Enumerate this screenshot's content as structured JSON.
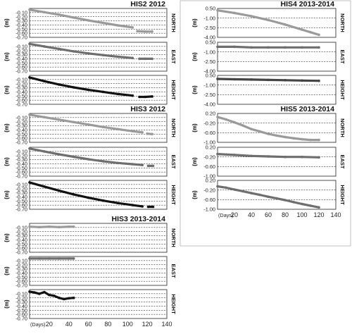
{
  "chart_data": [
    {
      "type": "scatter",
      "title": "HIS2 2012",
      "x_range": [
        0,
        140
      ],
      "panels": [
        {
          "component": "NORTH",
          "ylabel": "(m)",
          "ylim": [
            -0.7,
            0
          ],
          "yticks": [
            "-0.10",
            "-0.20",
            "-0.30",
            "-0.40",
            "-0.50",
            "-0.60",
            "-0.70"
          ],
          "color": "#9a9a9a",
          "series": [
            {
              "x": [
                0,
                15,
                30,
                45,
                60,
                75,
                90,
                105
              ],
              "y": [
                -0.03,
                -0.09,
                -0.15,
                -0.22,
                -0.29,
                -0.35,
                -0.41,
                -0.46
              ]
            },
            {
              "x": [
                110,
                118,
                125
              ],
              "y": [
                -0.55,
                -0.56,
                -0.56
              ]
            }
          ]
        },
        {
          "component": "EAST",
          "ylabel": "(m)",
          "ylim": [
            -0.7,
            0
          ],
          "yticks": [
            "-0.10",
            "-0.20",
            "-0.30",
            "-0.40",
            "-0.50",
            "-0.60",
            "-0.70"
          ],
          "color": "#6e6e6e",
          "series": [
            {
              "x": [
                0,
                15,
                30,
                45,
                60,
                75,
                90,
                105
              ],
              "y": [
                -0.04,
                -0.1,
                -0.16,
                -0.22,
                -0.27,
                -0.31,
                -0.35,
                -0.38
              ]
            },
            {
              "x": [
                112,
                118,
                125
              ],
              "y": [
                -0.4,
                -0.4,
                -0.4
              ]
            }
          ]
        },
        {
          "component": "HEIGHT",
          "ylabel": "(m)",
          "ylim": [
            -0.7,
            0
          ],
          "yticks": [
            "-0.10",
            "-0.20",
            "-0.30",
            "-0.40",
            "-0.50",
            "-0.60",
            "-0.70"
          ],
          "color": "#111111",
          "series": [
            {
              "x": [
                0,
                15,
                30,
                45,
                60,
                75,
                90,
                105
              ],
              "y": [
                -0.05,
                -0.14,
                -0.22,
                -0.29,
                -0.35,
                -0.4,
                -0.45,
                -0.49
              ]
            },
            {
              "x": [
                112,
                118,
                125
              ],
              "y": [
                -0.52,
                -0.52,
                -0.51
              ]
            }
          ]
        }
      ]
    },
    {
      "type": "scatter",
      "title": "HIS3 2012",
      "x_range": [
        0,
        140
      ],
      "panels": [
        {
          "component": "NORTH",
          "ylabel": "(m)",
          "ylim": [
            -0.7,
            0
          ],
          "yticks": [
            "-0.10",
            "-0.20",
            "-0.30",
            "-0.40",
            "-0.50",
            "-0.60",
            "-0.70"
          ],
          "color": "#9a9a9a",
          "series": [
            {
              "x": [
                0,
                15,
                30,
                45,
                60,
                75,
                90,
                105,
                115
              ],
              "y": [
                -0.03,
                -0.09,
                -0.15,
                -0.21,
                -0.27,
                -0.33,
                -0.38,
                -0.43,
                -0.46
              ]
            },
            {
              "x": [
                120,
                125
              ],
              "y": [
                -0.49,
                -0.5
              ]
            }
          ]
        },
        {
          "component": "EAST",
          "ylabel": "(m)",
          "ylim": [
            -0.7,
            0
          ],
          "yticks": [
            "-0.10",
            "-0.20",
            "-0.30",
            "-0.40",
            "-0.50",
            "-0.60",
            "-0.70"
          ],
          "color": "#6e6e6e",
          "series": [
            {
              "x": [
                0,
                15,
                30,
                45,
                60,
                75,
                90,
                105,
                115
              ],
              "y": [
                -0.03,
                -0.1,
                -0.17,
                -0.23,
                -0.29,
                -0.34,
                -0.38,
                -0.41,
                -0.43
              ]
            },
            {
              "x": [
                121,
                126
              ],
              "y": [
                -0.45,
                -0.45
              ]
            }
          ]
        },
        {
          "component": "HEIGHT",
          "ylabel": "(m)",
          "ylim": [
            -0.7,
            0
          ],
          "yticks": [
            "-0.10",
            "-0.20",
            "-0.30",
            "-0.40",
            "-0.50",
            "-0.60",
            "-0.70"
          ],
          "color": "#111111",
          "series": [
            {
              "x": [
                0,
                15,
                30,
                45,
                60,
                75,
                90,
                105,
                115
              ],
              "y": [
                -0.05,
                -0.15,
                -0.25,
                -0.34,
                -0.42,
                -0.49,
                -0.55,
                -0.6,
                -0.63
              ]
            },
            {
              "x": [
                121,
                126
              ],
              "y": [
                -0.64,
                -0.64
              ]
            }
          ]
        }
      ]
    },
    {
      "type": "scatter",
      "title": "HIS3 2013-2014",
      "x_range": [
        0,
        140
      ],
      "xlabel": "(Days)",
      "xticks": [
        20,
        40,
        60,
        80,
        100,
        120,
        140
      ],
      "panels": [
        {
          "component": "NORTH",
          "ylabel": "(m)",
          "ylim": [
            -0.7,
            0
          ],
          "yticks": [
            "-0.10",
            "-0.20",
            "-0.30",
            "-0.40",
            "-0.50",
            "-0.60",
            "-0.70"
          ],
          "color": "#9a9a9a",
          "series": [
            {
              "x": [
                0,
                10,
                20,
                30,
                40,
                45
              ],
              "y": [
                -0.08,
                -0.09,
                -0.08,
                -0.09,
                -0.08,
                -0.08
              ]
            }
          ]
        },
        {
          "component": "EAST",
          "ylabel": "(m)",
          "ylim": [
            -0.7,
            0
          ],
          "yticks": [
            "-0.10",
            "-0.20",
            "-0.30",
            "-0.40",
            "-0.50",
            "-0.60",
            "-0.70"
          ],
          "color": "#6e6e6e",
          "series": [
            {
              "x": [
                0,
                10,
                20,
                30,
                40,
                45
              ],
              "y": [
                -0.05,
                -0.05,
                -0.05,
                -0.05,
                -0.05,
                -0.05
              ]
            }
          ]
        },
        {
          "component": "HEIGHT",
          "ylabel": "(m)",
          "ylim": [
            -0.7,
            0
          ],
          "yticks": [
            "-0.10",
            "-0.20",
            "-0.30",
            "-0.40",
            "-0.50",
            "-0.60",
            "-0.70"
          ],
          "color": "#111111",
          "series": [
            {
              "x": [
                0,
                5,
                10,
                15,
                20,
                25,
                30,
                35,
                40,
                45
              ],
              "y": [
                -0.05,
                -0.07,
                -0.1,
                -0.06,
                -0.13,
                -0.15,
                -0.2,
                -0.23,
                -0.21,
                -0.2
              ]
            }
          ]
        }
      ]
    },
    {
      "type": "scatter",
      "title": "HIS4 2013-2014",
      "x_range": [
        0,
        140
      ],
      "panels": [
        {
          "component": "NORTH",
          "ylabel": "(m)",
          "ylim": [
            -4.0,
            0.5
          ],
          "yticks": [
            "0.50",
            "-1.00",
            "-2.50",
            "-4.00"
          ],
          "color": "#9a9a9a",
          "series": [
            {
              "x": [
                0,
                20,
                40,
                60,
                80,
                100,
                110,
                120
              ],
              "y": [
                0.2,
                -0.2,
                -0.7,
                -1.3,
                -2.0,
                -2.8,
                -3.2,
                -3.6
              ]
            }
          ]
        },
        {
          "component": "EAST",
          "ylabel": "(m)",
          "ylim": [
            -4.0,
            0.5
          ],
          "yticks": [
            "0.50",
            "-1.00",
            "-2.50",
            "-4.00"
          ],
          "color": "#6e6e6e",
          "series": [
            {
              "x": [
                0,
                20,
                40,
                60,
                80,
                100,
                120
              ],
              "y": [
                -0.2,
                -0.2,
                -0.3,
                -0.3,
                -0.3,
                -0.3,
                -0.3
              ]
            }
          ]
        },
        {
          "component": "HEIGHT",
          "ylabel": "(m)",
          "ylim": [
            -4.0,
            0.5
          ],
          "yticks": [
            "0.50",
            "-1.00",
            "-2.50",
            "-4.00"
          ],
          "color": "#444444",
          "series": [
            {
              "x": [
                0,
                20,
                40,
                60,
                80,
                100,
                120
              ],
              "y": [
                -0.05,
                -0.1,
                -0.15,
                -0.2,
                -0.25,
                -0.3,
                -0.35
              ]
            }
          ]
        }
      ]
    },
    {
      "type": "scatter",
      "title": "HIS5 2013-2014",
      "x_range": [
        0,
        140
      ],
      "xlabel": "(Days)",
      "xticks": [
        20,
        40,
        60,
        80,
        100,
        120,
        140
      ],
      "panels": [
        {
          "component": "NORTH",
          "ylabel": "(m)",
          "ylim": [
            -1.0,
            0.2
          ],
          "yticks": [
            "0.20",
            "-0.20",
            "-0.60",
            "-1.00"
          ],
          "color": "#9a9a9a",
          "series": [
            {
              "x": [
                0,
                10,
                20,
                30,
                40,
                50,
                60,
                70,
                80,
                90,
                100,
                110,
                120
              ],
              "y": [
                0.05,
                -0.05,
                -0.17,
                -0.3,
                -0.45,
                -0.55,
                -0.65,
                -0.72,
                -0.78,
                -0.83,
                -0.87,
                -0.9,
                -0.9
              ]
            }
          ]
        },
        {
          "component": "EAST",
          "ylabel": "(m)",
          "ylim": [
            -1.0,
            0.2
          ],
          "yticks": [
            "0.20",
            "-0.20",
            "-0.60",
            "-1.00"
          ],
          "color": "#6e6e6e",
          "series": [
            {
              "x": [
                0,
                20,
                40,
                60,
                80,
                100,
                120
              ],
              "y": [
                -0.08,
                -0.12,
                -0.16,
                -0.18,
                -0.2,
                -0.2,
                -0.22
              ]
            }
          ]
        },
        {
          "component": "HEIGHT",
          "ylabel": "(m)",
          "ylim": [
            -1.0,
            0.2
          ],
          "yticks": [
            "0.20",
            "-0.20",
            "-0.60",
            "-1.00"
          ],
          "color": "#6e6e6e",
          "series": [
            {
              "x": [
                0,
                10,
                20,
                30,
                40,
                50,
                60,
                70,
                80,
                90,
                100,
                110,
                120
              ],
              "y": [
                -0.05,
                -0.1,
                -0.18,
                -0.25,
                -0.33,
                -0.4,
                -0.48,
                -0.55,
                -0.62,
                -0.7,
                -0.78,
                -0.85,
                -0.92
              ]
            }
          ]
        }
      ]
    }
  ]
}
